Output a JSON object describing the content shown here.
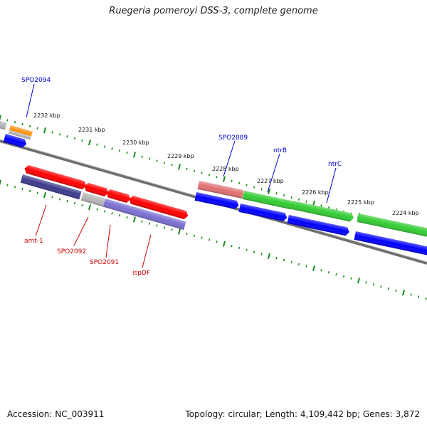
{
  "title": "Ruegeria pomeroyi DSS-3, complete genome",
  "accession": "Accession: NC_003911",
  "summary": "Topology: circular; Length: 4,109,442 bp; Genes: 3,872",
  "colors": {
    "forward_cds": "#ff0000",
    "reverse_cds": "#0000ff",
    "pseudo": "#b5b5b5",
    "green_operon": "#33cc33",
    "salmon": "#e07070",
    "purple": "#7a6fd0",
    "navy": "#3d3a8c",
    "orange": "#ff8c00",
    "backbone": "#808080",
    "tick": "#1a8c1a",
    "label_blue": "#0000cc",
    "label_red": "#cc0000"
  },
  "scale_labels": [
    "2232 kbp",
    "2231 kbp",
    "2230 kbp",
    "2229 kbp",
    "2228 kbp",
    "2227 kbp",
    "2226 kbp",
    "2225 kbp",
    "2224 kbp"
  ],
  "gene_labels_top": [
    {
      "text": "SPO2094"
    },
    {
      "text": "SPO2089"
    },
    {
      "text": "ntrB"
    },
    {
      "text": "ntrC"
    }
  ],
  "gene_labels_bottom": [
    {
      "text": "amt-1"
    },
    {
      "text": "SPO2092"
    },
    {
      "text": "SPO2091"
    },
    {
      "text": "ispDF"
    }
  ]
}
